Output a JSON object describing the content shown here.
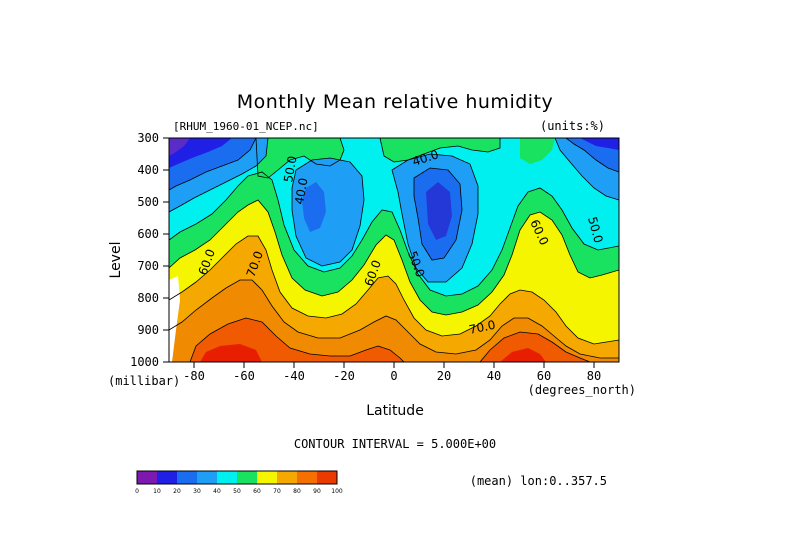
{
  "title": "Monthly Mean relative humidity",
  "dataset_label": "[RHUM_1960-01_NCEP.nc]",
  "units_label": "(units:%)",
  "contour_interval_label": "CONTOUR INTERVAL = 5.000E+00",
  "average_label": "(mean) lon:0..357.5",
  "chart_data": {
    "type": "contour",
    "title": "Monthly Mean relative humidity",
    "xlabel": "Latitude",
    "x_units": "(degrees_north)",
    "ylabel": "Level",
    "y_units": "(millibar)",
    "xlim": [
      -90,
      90
    ],
    "ylim": [
      1000,
      300
    ],
    "x_ticks": [
      "-80",
      "-60",
      "-40",
      "-20",
      "0",
      "20",
      "40",
      "60",
      "80"
    ],
    "x_tick_values": [
      -80,
      -60,
      -40,
      -20,
      0,
      20,
      40,
      60,
      80
    ],
    "y_ticks": [
      "300",
      "400",
      "500",
      "600",
      "700",
      "800",
      "900",
      "1000"
    ],
    "y_tick_values": [
      300,
      400,
      500,
      600,
      700,
      800,
      900,
      1000
    ],
    "contour_interval": 5,
    "contour_labels": [
      {
        "text": "50.0",
        "lat": -42,
        "level": 440
      },
      {
        "text": "40.0",
        "lat": -40,
        "level": 485
      },
      {
        "text": "40.0",
        "lat": 12,
        "level": 385
      },
      {
        "text": "60.0",
        "lat": -83,
        "level": 680
      },
      {
        "text": "70.0",
        "lat": -58,
        "level": 700
      },
      {
        "text": "60.0",
        "lat": -10,
        "level": 720
      },
      {
        "text": "50.0",
        "lat": 8,
        "level": 680
      },
      {
        "text": "60.0",
        "lat": 58,
        "level": 580
      },
      {
        "text": "50.0",
        "lat": 80,
        "level": 580
      },
      {
        "text": "70.0",
        "lat": 34,
        "level": 880
      }
    ],
    "colorbar": {
      "ticks": [
        "0",
        "10",
        "20",
        "30",
        "40",
        "50",
        "60",
        "70",
        "80",
        "90",
        "100"
      ],
      "colors": [
        "#7d18b0",
        "#1f1fe6",
        "#1b6df0",
        "#1e9ef5",
        "#00f0f0",
        "#18e260",
        "#f5f500",
        "#f5a800",
        "#f57000",
        "#eb3a00"
      ]
    },
    "field_colors": {
      "below30": "#2438d8",
      "c30_35": "#1b6df0",
      "c35_40": "#1e9ef5",
      "c40_50": "#00f0f0",
      "c50_55": "#18e260",
      "c55_60": "#13d042",
      "c60_70": "#f5f500",
      "c70_75": "#f5a800",
      "c75_80": "#f08a00",
      "c80_90": "#f05a00",
      "above90": "#e81e00",
      "missing": "#ffffff",
      "low_polar": "#5a2dc8"
    }
  }
}
